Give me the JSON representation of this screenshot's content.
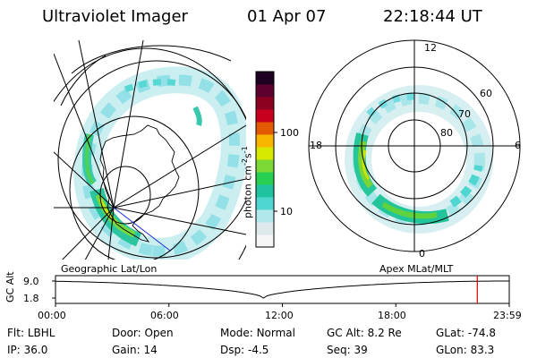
{
  "header": {
    "title": "Ultraviolet Imager",
    "date": "01 Apr 07",
    "time": "22:18:44 UT"
  },
  "colorbar": {
    "unit_label": "photon cm",
    "unit_sup1": "-2",
    "unit_mid": "s",
    "unit_sup2": "-1",
    "ticks": [
      "100",
      "10"
    ],
    "colors": [
      "#f5f5f5",
      "#dfe8ea",
      "#b0e8ec",
      "#4fd6d0",
      "#20c3a0",
      "#27cf52",
      "#7cd834",
      "#d7e800",
      "#f7b500",
      "#e25a00",
      "#c8001d",
      "#8d0020",
      "#5c0030",
      "#1e0022"
    ]
  },
  "left_panel": {
    "label": "Geographic Lat/Lon"
  },
  "right_panel": {
    "label": "Apex MLat/MLT",
    "mlt_labels": [
      "12",
      "18",
      "6",
      "0"
    ],
    "mlat_labels": [
      "60",
      "70",
      "80"
    ]
  },
  "altitude_plot": {
    "y_title": "GC Alt",
    "y_ticks": [
      "9.0",
      "1.8"
    ],
    "x_ticks": [
      "00:00",
      "06:00",
      "12:00",
      "18:00",
      "23:59"
    ],
    "current_time_marker_hours": 22.31,
    "marker_color": "#e00000"
  },
  "footer": {
    "row1": [
      {
        "label": "Flt:",
        "value": "LBHL"
      },
      {
        "label": "Door:",
        "value": "Open"
      },
      {
        "label": "Mode:",
        "value": "Normal"
      },
      {
        "label": "GC Alt:",
        "value": "8.2 Re"
      },
      {
        "label": "GLat:",
        "value": "-74.8"
      }
    ],
    "row2": [
      {
        "label": "IP:",
        "value": "36.0"
      },
      {
        "label": "Gain:",
        "value": "14"
      },
      {
        "label": "Dsp:",
        "value": "-4.5"
      },
      {
        "label": "Seq:",
        "value": "39"
      },
      {
        "label": "GLon:",
        "value": "83.3"
      }
    ]
  }
}
